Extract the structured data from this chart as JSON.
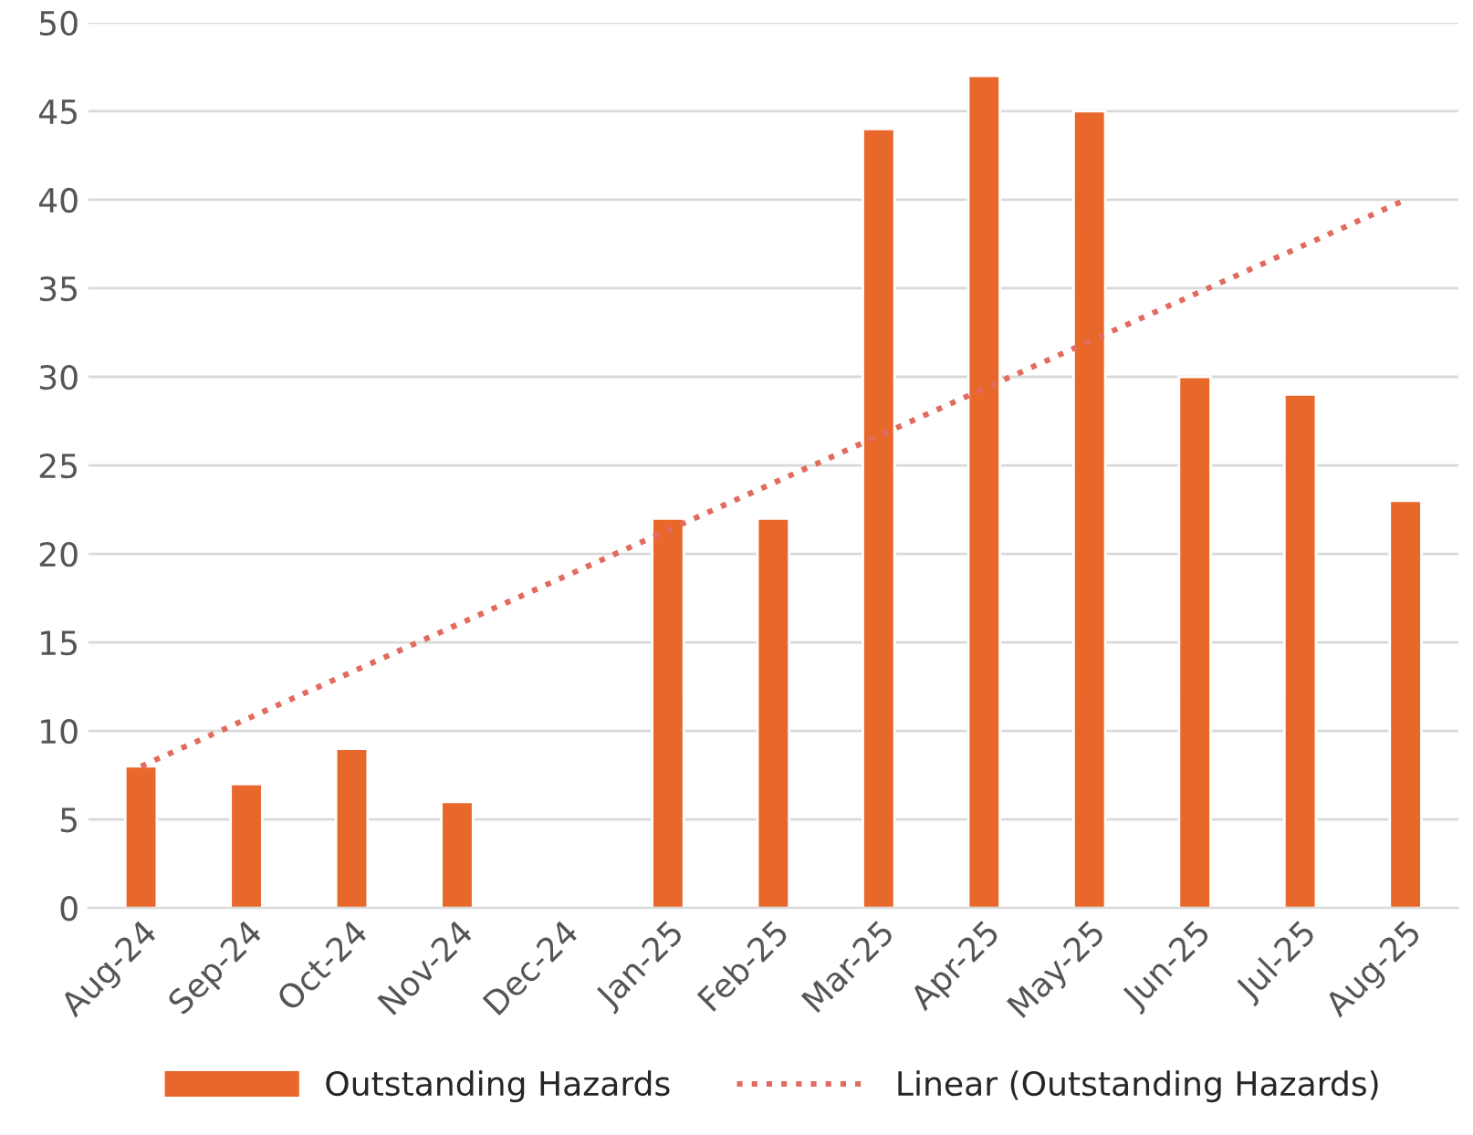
{
  "chart_data": {
    "type": "bar",
    "categories": [
      "Aug-24",
      "Sep-24",
      "Oct-24",
      "Nov-24",
      "Dec-24",
      "Jan-25",
      "Feb-25",
      "Mar-25",
      "Apr-25",
      "May-25",
      "Jun-25",
      "Jul-25",
      "Aug-25"
    ],
    "series": [
      {
        "name": "Outstanding Hazards",
        "color": "#e8672a",
        "values": [
          8,
          7,
          9,
          6,
          null,
          22,
          22,
          44,
          47,
          45,
          30,
          29,
          23
        ]
      },
      {
        "name": "Linear (Outstanding Hazards)",
        "type": "line",
        "color": "#e26a5e",
        "line_style": "dotted",
        "x": [
          "Aug-24",
          "Aug-25"
        ],
        "values": [
          8,
          40
        ]
      }
    ],
    "ylim": [
      0,
      50
    ],
    "yticks": [
      0,
      5,
      10,
      15,
      20,
      25,
      30,
      35,
      40,
      45,
      50
    ],
    "grid": "y",
    "legend": "bottom"
  }
}
